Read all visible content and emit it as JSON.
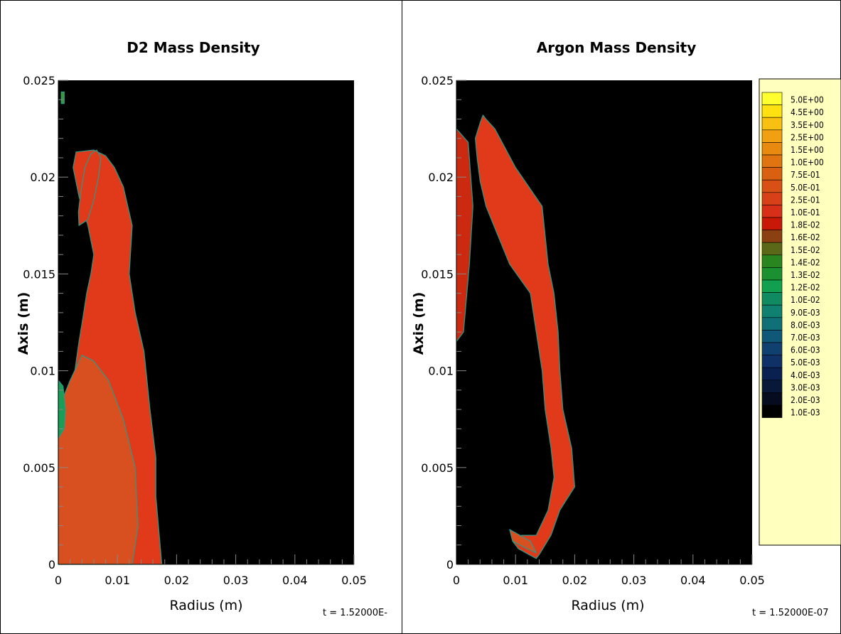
{
  "chart_data": [
    {
      "type": "heatmap",
      "title": "D2 Mass Density",
      "xlabel": "Radius (m)",
      "ylabel": "Axis (m)",
      "xlim": [
        0,
        0.05
      ],
      "ylim": [
        0,
        0.025
      ],
      "x_ticks": [
        "0",
        "0.01",
        "0.02",
        "0.03",
        "0.04",
        "0.05"
      ],
      "y_ticks": [
        "0",
        "0.005",
        "0.01",
        "0.015",
        "0.02",
        "0.025"
      ],
      "time_label": "t = 1.52000E-",
      "background_color": "#000000",
      "regions": [
        {
          "name": "main dense column",
          "level": "1.0E-01",
          "color": "#e03a1a",
          "x": [
            0.0,
            0.007,
            0.0175,
            0.0165,
            0.0165,
            0.0155,
            0.0145,
            0.013,
            0.012,
            0.0125,
            0.011,
            0.0095,
            0.008,
            0.006,
            0.003,
            0.0025,
            0.0035,
            0.005,
            0.006,
            0.0055,
            0.0048,
            0.0042,
            0.0035,
            0.0028,
            0.0025,
            0.0029,
            0.0034,
            0.0036,
            0.0032,
            0.0025,
            0.0015,
            0.0005,
            0.0
          ],
          "y": [
            0.0,
            0.0,
            0.0,
            0.0035,
            0.0055,
            0.008,
            0.011,
            0.013,
            0.015,
            0.0175,
            0.0195,
            0.0205,
            0.0211,
            0.0214,
            0.0213,
            0.0205,
            0.019,
            0.0175,
            0.016,
            0.015,
            0.014,
            0.0128,
            0.0115,
            0.01,
            0.0085,
            0.007,
            0.0055,
            0.004,
            0.003,
            0.002,
            0.001,
            0.0004,
            0.0
          ]
        },
        {
          "name": "lower left mixed region",
          "level": "2.5E-01",
          "color": "#d8501f",
          "x": [
            0.0,
            0.0125,
            0.0135,
            0.013,
            0.011,
            0.0085,
            0.006,
            0.004,
            0.002,
            0.0
          ],
          "y": [
            0.0,
            0.0,
            0.002,
            0.005,
            0.0075,
            0.0095,
            0.0105,
            0.0108,
            0.0095,
            0.008
          ]
        },
        {
          "name": "upper filament",
          "level": "1.0E-01",
          "color": "#e03a1a",
          "x": [
            0.0035,
            0.005,
            0.006,
            0.0068,
            0.0072,
            0.0065,
            0.0055,
            0.0045,
            0.0038,
            0.0034
          ],
          "y": [
            0.0175,
            0.0178,
            0.0188,
            0.02,
            0.021,
            0.0214,
            0.0212,
            0.0205,
            0.0192,
            0.0182
          ]
        },
        {
          "name": "edge mixing region",
          "level": "1.2E-02",
          "color": "#1a9d55",
          "x": [
            0.0,
            0.001,
            0.0012,
            0.0008,
            0.0
          ],
          "y": [
            0.0065,
            0.007,
            0.008,
            0.0092,
            0.0095
          ]
        },
        {
          "name": "upper left speck",
          "level": "1.3E-02",
          "color": "#3a9a30",
          "x": [
            0.0005,
            0.001,
            0.001,
            0.0005
          ],
          "y": [
            0.0238,
            0.0238,
            0.0244,
            0.0244
          ]
        }
      ]
    },
    {
      "type": "heatmap",
      "title": "Argon Mass Density",
      "xlabel": "Radius (m)",
      "ylabel": "Axis (m)",
      "xlim": [
        0,
        0.05
      ],
      "ylim": [
        0,
        0.025
      ],
      "x_ticks": [
        "0",
        "0.01",
        "0.02",
        "0.03",
        "0.04",
        "0.05"
      ],
      "y_ticks": [
        "0",
        "0.005",
        "0.01",
        "0.015",
        "0.02",
        "0.025"
      ],
      "time_label": "t = 1.52000E-07",
      "background_color": "#000000",
      "regions": [
        {
          "name": "argon shell band",
          "level": "1.0E-01",
          "color": "#e03a1a",
          "x": [
            0.005,
            0.0065,
            0.01,
            0.0145,
            0.015,
            0.0155,
            0.0165,
            0.0172,
            0.0175,
            0.018,
            0.0195,
            0.02,
            0.0175,
            0.016,
            0.014,
            0.0135,
            0.0105,
            0.0095,
            0.011,
            0.0135,
            0.0155,
            0.0165,
            0.016,
            0.015,
            0.0145,
            0.0135,
            0.0125,
            0.009,
            0.007,
            0.005,
            0.004,
            0.0035,
            0.0032,
            0.004,
            0.0045
          ],
          "y": [
            0.023,
            0.0225,
            0.0205,
            0.0185,
            0.017,
            0.0155,
            0.014,
            0.012,
            0.01,
            0.008,
            0.006,
            0.004,
            0.0028,
            0.0015,
            0.0005,
            0.0003,
            0.0008,
            0.0012,
            0.0015,
            0.0015,
            0.0028,
            0.0045,
            0.006,
            0.008,
            0.01,
            0.012,
            0.014,
            0.0155,
            0.017,
            0.0185,
            0.0198,
            0.021,
            0.022,
            0.0228,
            0.0232
          ]
        },
        {
          "name": "axis edge region",
          "level": "1.8E-02",
          "color": "#cc2a10",
          "x": [
            0.0,
            0.002,
            0.0028,
            0.0022,
            0.0012,
            0.0
          ],
          "y": [
            0.0225,
            0.0218,
            0.0185,
            0.0155,
            0.012,
            0.0115
          ]
        },
        {
          "name": "base blob",
          "level": "2.5E-01",
          "color": "#d8501f",
          "x": [
            0.009,
            0.0125,
            0.0135,
            0.012,
            0.0095
          ],
          "y": [
            0.0018,
            0.0012,
            0.0006,
            0.0008,
            0.0012
          ]
        }
      ]
    }
  ],
  "legend": {
    "levels": [
      "5.0E+00",
      "4.5E+00",
      "3.5E+00",
      "2.5E+00",
      "1.5E+00",
      "1.0E+00",
      "7.5E-01",
      "5.0E-01",
      "2.5E-01",
      "1.0E-01",
      "1.8E-02",
      "1.6E-02",
      "1.5E-02",
      "1.4E-02",
      "1.3E-02",
      "1.2E-02",
      "1.0E-02",
      "9.0E-03",
      "8.0E-03",
      "7.0E-03",
      "6.0E-03",
      "5.0E-03",
      "4.0E-03",
      "3.0E-03",
      "2.0E-03",
      "1.0E-03"
    ],
    "colors": [
      "#ffff30",
      "#ffe010",
      "#f8c010",
      "#f0a010",
      "#e88a10",
      "#e07410",
      "#d86010",
      "#d85015",
      "#d84018",
      "#d83018",
      "#c81808",
      "#8a4010",
      "#5a6818",
      "#2a8420",
      "#1a9030",
      "#10a050",
      "#108a60",
      "#108070",
      "#107078",
      "#105878",
      "#104070",
      "#103068",
      "#0a2050",
      "#081838",
      "#050c20",
      "#000000"
    ],
    "background": "#ffffbe"
  }
}
